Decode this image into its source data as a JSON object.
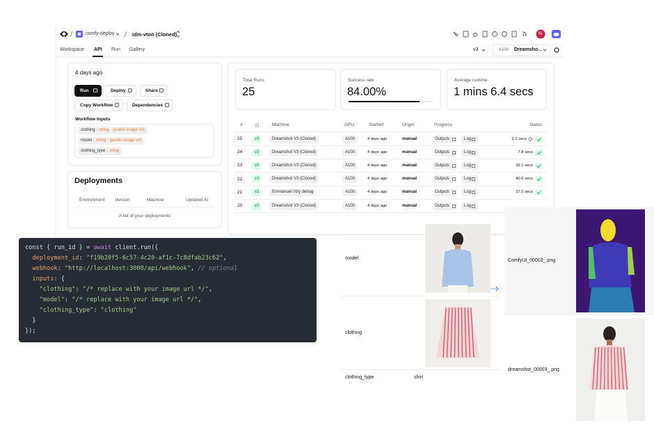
{
  "topbar": {
    "workspace": "comfy-deploy",
    "workflow": "idm-vton (Cloned)",
    "avatar": "N"
  },
  "tabs": {
    "items": [
      "Workspace",
      "API",
      "Run",
      "Gallery"
    ],
    "active": "API"
  },
  "toolbar": {
    "version": "v3",
    "gpu": "A100",
    "machine": "Dreamsho..."
  },
  "workflow_card": {
    "updated": "4 days ago",
    "buttons": [
      "Run",
      "Deploy",
      "Share",
      "Copy Workflow",
      "Dependencies"
    ],
    "inputs_title": "Workflow Inputs",
    "inputs": [
      {
        "name": "clothing :",
        "type": "string - (public image url)"
      },
      {
        "name": "model :",
        "type": "string - (public image url)"
      },
      {
        "name": "clothing_type :",
        "type": "string"
      }
    ]
  },
  "deployments": {
    "title": "Deployments",
    "columns": [
      "Environment",
      "Version",
      "Machine",
      "Updated At"
    ],
    "empty": "A list of your deployments"
  },
  "stats": [
    {
      "label": "Total Runs",
      "value": "25"
    },
    {
      "label": "Success rate",
      "value": "84.00%"
    },
    {
      "label": "Average runtime",
      "value": "1 mins 6.4 secs"
    }
  ],
  "runs": {
    "columns": [
      "#",
      "Machine",
      "GPU",
      "Started",
      "Origin",
      "Progress",
      "Status"
    ],
    "progress_buttons": [
      "Outputs",
      "Log"
    ],
    "rows": [
      {
        "id": "25",
        "version": "v3",
        "machine": "Dreamshot V3 (Cloned)",
        "gpu": "A100",
        "started": "4 days ago",
        "origin": "manual",
        "duration": "9.3 secs"
      },
      {
        "id": "24",
        "version": "v3",
        "machine": "Dreamshot V3 (Cloned)",
        "gpu": "A100",
        "started": "4 days ago",
        "origin": "manual",
        "duration": "7.8 secs"
      },
      {
        "id": "23",
        "version": "v3",
        "machine": "Dreamshot V3 (Cloned)",
        "gpu": "A100",
        "started": "4 days ago",
        "origin": "manual",
        "duration": "39.1 secs"
      },
      {
        "id": "22",
        "version": "v3",
        "machine": "Dreamshot V3 (Cloned)",
        "gpu": "A100",
        "started": "4 days ago",
        "origin": "manual",
        "duration": "40.6 secs"
      },
      {
        "id": "21",
        "version": "v3",
        "machine": "Emmanuel Vtry debug",
        "gpu": "A100",
        "started": "4 days ago",
        "origin": "manual",
        "duration": "37.5 secs"
      },
      {
        "id": "20",
        "version": "v3",
        "machine": "Dreamshot V3 (Cloned)",
        "gpu": "A100",
        "started": "4 days ago",
        "origin": "manual"
      }
    ]
  },
  "code": {
    "lines": [
      [
        "const { run_id } = ",
        "await",
        " client.run({"
      ],
      [
        "  deployment_id",
        ": ",
        "\"f19b20f5-6c57-4c20-af1c-7c8dfab23c62\"",
        ","
      ],
      [
        "  webhook",
        ": ",
        "\"http://localhost:3000/api/webhook\"",
        ", ",
        "// optional"
      ],
      [
        "  inputs",
        ": {"
      ],
      [
        "    \"clothing\"",
        ": ",
        "\"/* replace with your image url */\"",
        ","
      ],
      [
        "    \"model\"",
        ": ",
        "\"/* replace with your image url */\"",
        ","
      ],
      [
        "    \"clothing_type\"",
        ": ",
        "\"clothing\""
      ],
      [
        "  }"
      ],
      [
        "});"
      ]
    ]
  },
  "inputs_panel": {
    "rows": [
      {
        "label": "model"
      },
      {
        "label": "clothing"
      },
      {
        "label": "clothing_type",
        "value": "shirt"
      }
    ]
  },
  "outputs": [
    {
      "label": "ComfyUI_00002_.png"
    },
    {
      "label": "dreamshot_00003_.png"
    }
  ]
}
